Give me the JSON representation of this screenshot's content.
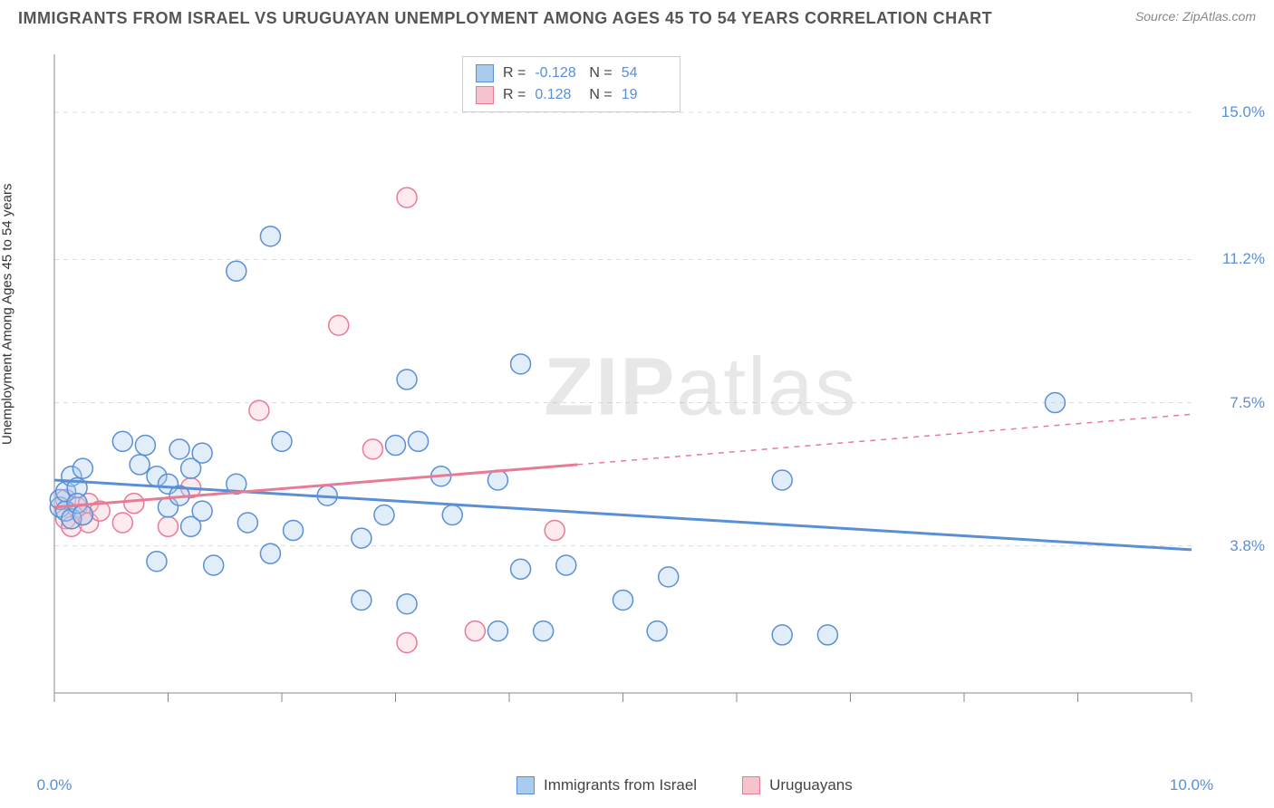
{
  "title": "IMMIGRANTS FROM ISRAEL VS URUGUAYAN UNEMPLOYMENT AMONG AGES 45 TO 54 YEARS CORRELATION CHART",
  "source": "Source: ZipAtlas.com",
  "y_axis_label": "Unemployment Among Ages 45 to 54 years",
  "watermark_a": "ZIP",
  "watermark_b": "atlas",
  "chart": {
    "type": "scatter",
    "x_domain": [
      0,
      10
    ],
    "y_domain": [
      0,
      16.5
    ],
    "x_ticks": [
      0,
      1,
      2,
      3,
      4,
      5,
      6,
      7,
      8,
      9,
      10
    ],
    "x_tick_labels": [
      "0.0%",
      "",
      "",
      "",
      "",
      "",
      "",
      "",
      "",
      "",
      "10.0%"
    ],
    "y_tick_labels": [
      {
        "val": 15.0,
        "text": "15.0%"
      },
      {
        "val": 11.2,
        "text": "11.2%"
      },
      {
        "val": 7.5,
        "text": "7.5%"
      },
      {
        "val": 3.8,
        "text": "3.8%"
      }
    ],
    "y_gridlines": [
      15.0,
      11.2,
      7.5,
      3.8
    ],
    "background_color": "#ffffff",
    "grid_color": "#dcdcdc",
    "axis_color": "#888888",
    "marker_radius": 11,
    "marker_fill_opacity": 0.35,
    "marker_stroke_width": 1.5,
    "trend_line_width": 3,
    "series_israel": {
      "label": "Immigrants from Israel",
      "color_fill": "#a9cbee",
      "color_stroke": "#5a8fd6",
      "R": "-0.128",
      "N": "54",
      "trend": {
        "x1": 0,
        "y1": 5.5,
        "x2": 10,
        "y2": 3.7
      },
      "points": [
        [
          0.05,
          4.8
        ],
        [
          0.05,
          5.0
        ],
        [
          0.1,
          4.7
        ],
        [
          0.1,
          5.2
        ],
        [
          0.15,
          4.5
        ],
        [
          0.15,
          5.6
        ],
        [
          0.2,
          5.3
        ],
        [
          0.2,
          4.9
        ],
        [
          0.25,
          5.8
        ],
        [
          0.25,
          4.6
        ],
        [
          0.6,
          6.5
        ],
        [
          0.75,
          5.9
        ],
        [
          0.8,
          6.4
        ],
        [
          0.9,
          3.4
        ],
        [
          0.9,
          5.6
        ],
        [
          1.0,
          5.4
        ],
        [
          1.0,
          4.8
        ],
        [
          1.1,
          6.3
        ],
        [
          1.1,
          5.1
        ],
        [
          1.2,
          4.3
        ],
        [
          1.2,
          5.8
        ],
        [
          1.3,
          6.2
        ],
        [
          1.3,
          4.7
        ],
        [
          1.4,
          3.3
        ],
        [
          1.6,
          5.4
        ],
        [
          1.6,
          10.9
        ],
        [
          1.7,
          4.4
        ],
        [
          1.9,
          11.8
        ],
        [
          1.9,
          3.6
        ],
        [
          2.0,
          6.5
        ],
        [
          2.1,
          4.2
        ],
        [
          2.4,
          5.1
        ],
        [
          2.7,
          4.0
        ],
        [
          2.7,
          2.4
        ],
        [
          2.9,
          4.6
        ],
        [
          3.0,
          6.4
        ],
        [
          3.1,
          8.1
        ],
        [
          3.1,
          2.3
        ],
        [
          3.2,
          6.5
        ],
        [
          3.4,
          5.6
        ],
        [
          3.5,
          4.6
        ],
        [
          3.9,
          5.5
        ],
        [
          3.9,
          1.6
        ],
        [
          4.1,
          8.5
        ],
        [
          4.1,
          3.2
        ],
        [
          4.3,
          1.6
        ],
        [
          4.5,
          3.3
        ],
        [
          5.0,
          2.4
        ],
        [
          5.3,
          1.6
        ],
        [
          5.4,
          3.0
        ],
        [
          6.4,
          1.5
        ],
        [
          6.4,
          5.5
        ],
        [
          6.8,
          1.5
        ],
        [
          8.8,
          7.5
        ]
      ]
    },
    "series_uruguay": {
      "label": "Uruguayans",
      "color_fill": "#f5c2cd",
      "color_stroke": "#e87b94",
      "R": "0.128",
      "N": "19",
      "trend_solid": {
        "x1": 0,
        "y1": 4.8,
        "x2": 4.6,
        "y2": 5.9
      },
      "trend_dash": {
        "x1": 4.6,
        "y1": 5.9,
        "x2": 10,
        "y2": 7.2
      },
      "points": [
        [
          0.1,
          4.5
        ],
        [
          0.1,
          5.0
        ],
        [
          0.15,
          4.3
        ],
        [
          0.2,
          4.8
        ],
        [
          0.25,
          4.6
        ],
        [
          0.3,
          4.9
        ],
        [
          0.3,
          4.4
        ],
        [
          0.4,
          4.7
        ],
        [
          0.6,
          4.4
        ],
        [
          0.7,
          4.9
        ],
        [
          1.0,
          4.3
        ],
        [
          1.2,
          5.3
        ],
        [
          1.8,
          7.3
        ],
        [
          2.5,
          9.5
        ],
        [
          2.8,
          6.3
        ],
        [
          3.1,
          12.8
        ],
        [
          3.1,
          1.3
        ],
        [
          3.7,
          1.6
        ],
        [
          4.4,
          4.2
        ]
      ]
    }
  },
  "legend": {
    "r_label": "R =",
    "n_label": "N ="
  }
}
